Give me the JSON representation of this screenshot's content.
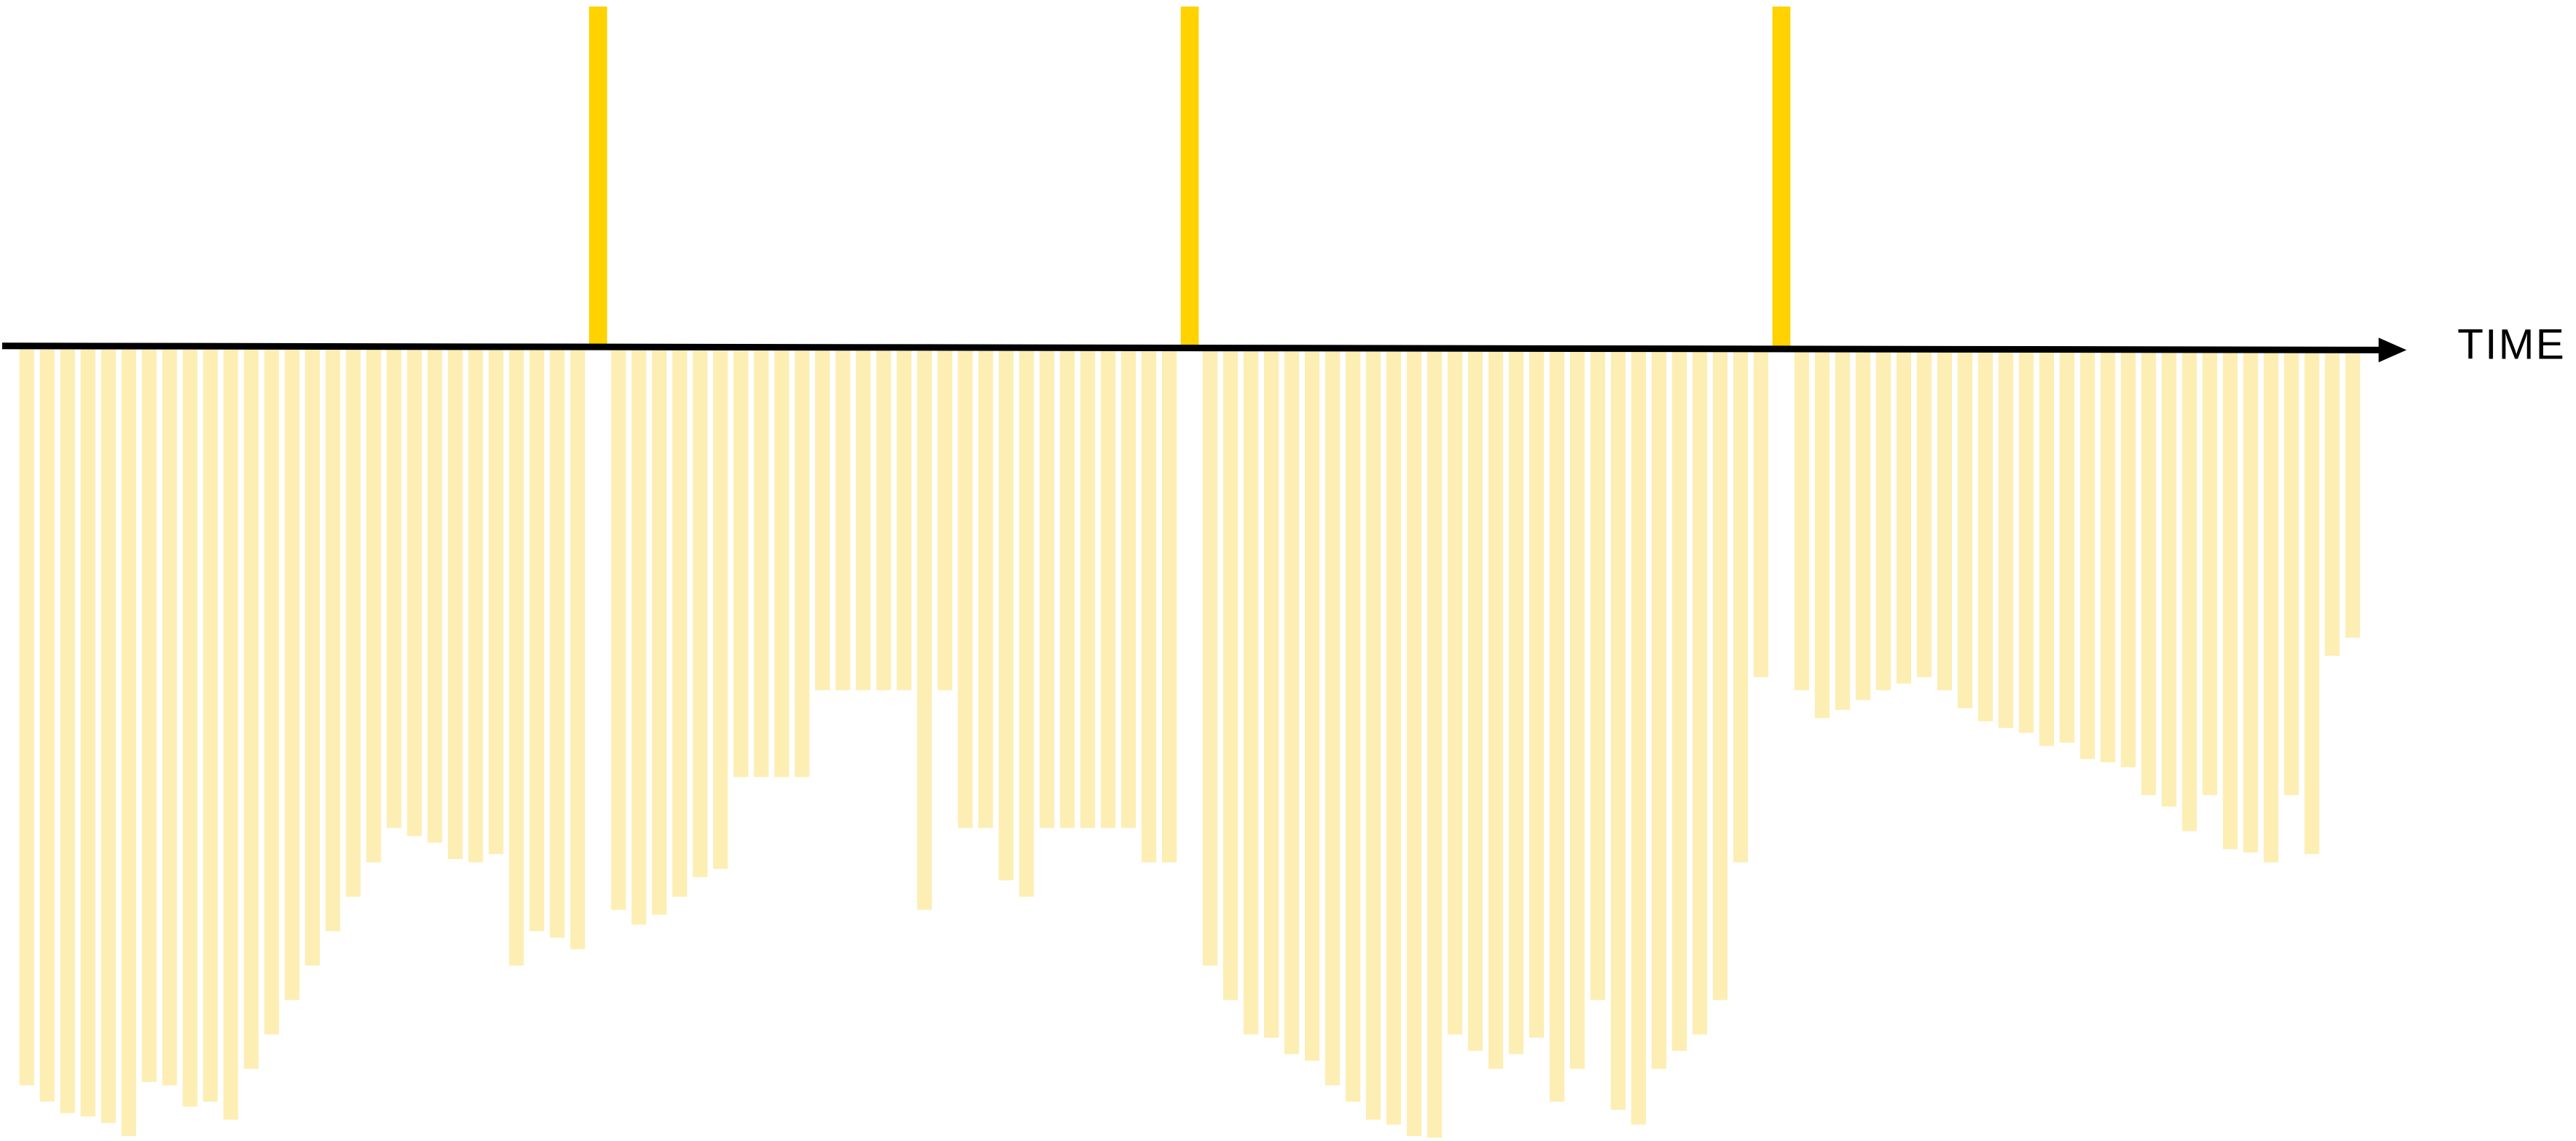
{
  "chart_data": {
    "type": "bar",
    "x_label": "TIME",
    "ylim": [
      -482,
      209
    ],
    "series": [
      {
        "color": "#fdeeb4",
        "values": [
          -450,
          -460,
          -467,
          -469,
          -473,
          -481,
          -448,
          -450,
          -463,
          -460,
          -471,
          -440,
          -419,
          -398,
          -377,
          -356,
          -335,
          -314,
          -293,
          -298,
          -302,
          -312,
          -314,
          -309,
          -377,
          -356,
          -360,
          -367,
          null,
          -343,
          -352,
          -346,
          -335,
          -323,
          -318,
          -262,
          -262,
          -262,
          -262,
          -209,
          -209,
          -209,
          -209,
          -209,
          -343,
          -209,
          -293,
          -293,
          -325,
          -335,
          -293,
          -293,
          -293,
          -293,
          -293,
          -314,
          -314,
          null,
          -377,
          -398,
          -419,
          -421,
          -431,
          -435,
          -450,
          -460,
          -471,
          -474,
          -481,
          -482,
          -419,
          -429,
          -440,
          -431,
          -421,
          -460,
          -440,
          -398,
          -465,
          -474,
          -440,
          -429,
          -419,
          -398,
          -314,
          -201,
          null,
          -209,
          -226,
          -221,
          -215,
          -209,
          -205,
          -201,
          -209,
          -220,
          -228,
          -232,
          -235,
          -243,
          -241,
          -251,
          -253,
          -256,
          -273,
          -280,
          -295,
          -273,
          -306,
          -308,
          -314,
          -273,
          -309,
          -188,
          -177
        ]
      },
      {
        "color": "#ffd200",
        "values": [
          null,
          null,
          null,
          null,
          null,
          null,
          null,
          null,
          null,
          null,
          null,
          null,
          null,
          null,
          null,
          null,
          null,
          null,
          null,
          null,
          null,
          null,
          null,
          null,
          null,
          null,
          null,
          null,
          208,
          null,
          null,
          null,
          null,
          null,
          null,
          null,
          null,
          null,
          null,
          null,
          null,
          null,
          null,
          null,
          null,
          null,
          null,
          null,
          null,
          null,
          null,
          null,
          null,
          null,
          null,
          null,
          null,
          208,
          null,
          null,
          null,
          null,
          null,
          null,
          null,
          null,
          null,
          null,
          null,
          null,
          null,
          null,
          null,
          null,
          null,
          null,
          null,
          null,
          null,
          null,
          null,
          null,
          null,
          null,
          null,
          null,
          208,
          null,
          null,
          null,
          null,
          null,
          null,
          null,
          null,
          null,
          null,
          null,
          null,
          null,
          null,
          null,
          null,
          null,
          null,
          null,
          null,
          null,
          null,
          null,
          null,
          null,
          null,
          null,
          null
        ]
      }
    ]
  }
}
